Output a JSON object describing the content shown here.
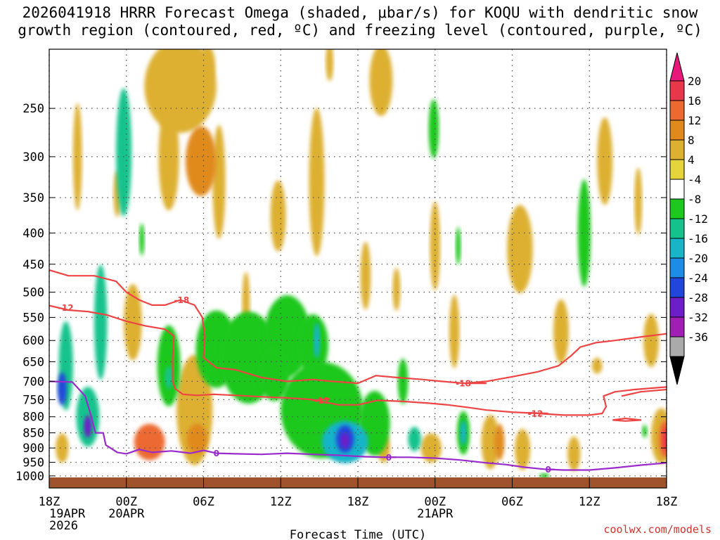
{
  "chart_data": {
    "type": "heatmap",
    "title_line1": "2026041918 HRRR Forecast Omega (shaded, μbar/s) for KOQU with dendritic snow",
    "title_line2": "growth region (contoured, red, ºC) and freezing level (contoured, purple, ºC)",
    "xlabel": "Forecast Time (UTC)",
    "ylabel": "",
    "x_range_hours": [
      0,
      48
    ],
    "y_range_hPa": [
      1030,
      200
    ],
    "y_ticks": [
      "250",
      "300",
      "350",
      "400",
      "450",
      "500",
      "550",
      "600",
      "650",
      "700",
      "750",
      "800",
      "850",
      "900",
      "950",
      "1000"
    ],
    "x_ticks": [
      {
        "hour": 0,
        "lines": [
          "18Z",
          "19APR",
          "2026"
        ]
      },
      {
        "hour": 6,
        "lines": [
          "00Z",
          "20APR"
        ]
      },
      {
        "hour": 12,
        "lines": [
          "06Z"
        ]
      },
      {
        "hour": 18,
        "lines": [
          "12Z"
        ]
      },
      {
        "hour": 24,
        "lines": [
          "18Z"
        ]
      },
      {
        "hour": 30,
        "lines": [
          "00Z",
          "21APR"
        ]
      },
      {
        "hour": 36,
        "lines": [
          "06Z"
        ]
      },
      {
        "hour": 42,
        "lines": [
          "12Z"
        ]
      },
      {
        "hour": 48,
        "lines": [
          "18Z"
        ]
      }
    ],
    "colorbar": {
      "labels": [
        "20",
        "16",
        "12",
        "8",
        "4",
        "-4",
        "-8",
        "-12",
        "-16",
        "-20",
        "-24",
        "-28",
        "-32",
        "-36"
      ],
      "bands": [
        {
          "lo": 16,
          "hi": 20,
          "color": "#e8364a"
        },
        {
          "lo": 12,
          "hi": 16,
          "color": "#ec6a30"
        },
        {
          "lo": 8,
          "hi": 12,
          "color": "#e08a1e"
        },
        {
          "lo": 4,
          "hi": 8,
          "color": "#ddb032"
        },
        {
          "lo": 0,
          "hi": 4,
          "color": "#e6d43c"
        },
        {
          "lo": -4,
          "hi": 0,
          "color": "#ffffff"
        },
        {
          "lo": -8,
          "hi": -4,
          "color": "#1ec81e"
        },
        {
          "lo": -12,
          "hi": -8,
          "color": "#14c38c"
        },
        {
          "lo": -16,
          "hi": -12,
          "color": "#18b4c8"
        },
        {
          "lo": -20,
          "hi": -16,
          "color": "#1e8ce6"
        },
        {
          "lo": -24,
          "hi": -20,
          "color": "#2046dc"
        },
        {
          "lo": -28,
          "hi": -24,
          "color": "#6e1ec8"
        },
        {
          "lo": -32,
          "hi": -28,
          "color": "#a01eb4"
        },
        {
          "lo": -36,
          "hi": -32,
          "color": "#aaaaaa"
        }
      ],
      "top_color": "#e8187a",
      "bottom_color": "#000000"
    },
    "omega_blobs": [
      {
        "t": 2.2,
        "p": 300,
        "rt": 0.35,
        "rp": 60,
        "v": 6
      },
      {
        "t": 5.3,
        "p": 345,
        "rt": 0.3,
        "rp": 30,
        "v": 4
      },
      {
        "t": 5.8,
        "p": 295,
        "rt": 0.6,
        "rp": 70,
        "v": -10
      },
      {
        "t": 7.2,
        "p": 410,
        "rt": 0.2,
        "rp": 25,
        "v": -6
      },
      {
        "t": 10.2,
        "p": 230,
        "rt": 2.8,
        "rp": 40,
        "v": 6
      },
      {
        "t": 11.8,
        "p": 305,
        "rt": 1.2,
        "rp": 40,
        "v": 9
      },
      {
        "t": 9.3,
        "p": 300,
        "rt": 0.8,
        "rp": 60,
        "v": 4
      },
      {
        "t": 13.2,
        "p": 330,
        "rt": 0.5,
        "rp": 70,
        "v": 4
      },
      {
        "t": 12.3,
        "p": 212,
        "rt": 0.6,
        "rp": 15,
        "v": 4
      },
      {
        "t": 15.3,
        "p": 520,
        "rt": 0.3,
        "rp": 60,
        "v": 4
      },
      {
        "t": 17.8,
        "p": 375,
        "rt": 0.6,
        "rp": 50,
        "v": 4
      },
      {
        "t": 20.8,
        "p": 330,
        "rt": 0.6,
        "rp": 90,
        "v": 4
      },
      {
        "t": 21.8,
        "p": 210,
        "rt": 0.3,
        "rp": 15,
        "v": 4
      },
      {
        "t": 24.6,
        "p": 470,
        "rt": 0.4,
        "rp": 60,
        "v": 4
      },
      {
        "t": 25.8,
        "p": 225,
        "rt": 0.9,
        "rp": 30,
        "v": 4
      },
      {
        "t": 27.0,
        "p": 495,
        "rt": 0.3,
        "rp": 40,
        "v": 4
      },
      {
        "t": 29.9,
        "p": 270,
        "rt": 0.4,
        "rp": 30,
        "v": -6
      },
      {
        "t": 30.0,
        "p": 420,
        "rt": 0.4,
        "rp": 70,
        "v": 4
      },
      {
        "t": 31.8,
        "p": 420,
        "rt": 0.2,
        "rp": 30,
        "v": -6
      },
      {
        "t": 36.6,
        "p": 425,
        "rt": 1.0,
        "rp": 70,
        "v": 6
      },
      {
        "t": 39.8,
        "p": 580,
        "rt": 0.6,
        "rp": 70,
        "v": 4
      },
      {
        "t": 41.6,
        "p": 400,
        "rt": 0.5,
        "rp": 80,
        "v": -8
      },
      {
        "t": 43.2,
        "p": 305,
        "rt": 0.6,
        "rp": 50,
        "v": 4
      },
      {
        "t": 45.8,
        "p": 355,
        "rt": 0.3,
        "rp": 45,
        "v": 4
      },
      {
        "t": 46.8,
        "p": 600,
        "rt": 0.6,
        "rp": 60,
        "v": 4
      },
      {
        "t": 42.6,
        "p": 660,
        "rt": 0.4,
        "rp": 20,
        "v": 4
      },
      {
        "t": 1.3,
        "p": 660,
        "rt": 0.55,
        "rp": 110,
        "v": -10
      },
      {
        "t": 1.0,
        "p": 720,
        "rt": 0.35,
        "rp": 45,
        "v": -22
      },
      {
        "t": 4.0,
        "p": 560,
        "rt": 0.5,
        "rp": 120,
        "v": -9
      },
      {
        "t": 3.0,
        "p": 800,
        "rt": 0.9,
        "rp": 90,
        "v": -12
      },
      {
        "t": 3.0,
        "p": 830,
        "rt": 0.3,
        "rp": 35,
        "v": -28
      },
      {
        "t": 1.0,
        "p": 900,
        "rt": 0.5,
        "rp": 50,
        "v": 7
      },
      {
        "t": 6.5,
        "p": 560,
        "rt": 0.7,
        "rp": 80,
        "v": 4
      },
      {
        "t": 7.8,
        "p": 880,
        "rt": 1.2,
        "rp": 60,
        "v": 12
      },
      {
        "t": 9.3,
        "p": 660,
        "rt": 0.9,
        "rp": 100,
        "v": -8
      },
      {
        "t": 9.3,
        "p": 690,
        "rt": 0.3,
        "rp": 30,
        "v": -12
      },
      {
        "t": 11.3,
        "p": 780,
        "rt": 1.4,
        "rp": 160,
        "v": 6
      },
      {
        "t": 11.5,
        "p": 870,
        "rt": 0.8,
        "rp": 50,
        "v": 10
      },
      {
        "t": 13.0,
        "p": 620,
        "rt": 1.6,
        "rp": 90,
        "v": -7
      },
      {
        "t": 15.5,
        "p": 640,
        "rt": 2.2,
        "rp": 110,
        "v": -8
      },
      {
        "t": 18.5,
        "p": 590,
        "rt": 1.8,
        "rp": 90,
        "v": -8
      },
      {
        "t": 20.5,
        "p": 610,
        "rt": 1.2,
        "rp": 70,
        "v": -8
      },
      {
        "t": 20.8,
        "p": 600,
        "rt": 0.25,
        "rp": 40,
        "v": -13
      },
      {
        "t": 17.5,
        "p": 680,
        "rt": 1.2,
        "rp": 70,
        "v": -8
      },
      {
        "t": 21.2,
        "p": 780,
        "rt": 3.2,
        "rp": 140,
        "v": -8
      },
      {
        "t": 23.0,
        "p": 880,
        "rt": 1.8,
        "rp": 70,
        "v": -16
      },
      {
        "t": 23.0,
        "p": 870,
        "rt": 0.7,
        "rp": 45,
        "v": -22
      },
      {
        "t": 23.0,
        "p": 875,
        "rt": 0.35,
        "rp": 25,
        "v": -28
      },
      {
        "t": 25.3,
        "p": 820,
        "rt": 1.2,
        "rp": 100,
        "v": -8
      },
      {
        "t": 26.0,
        "p": 900,
        "rt": 0.5,
        "rp": 50,
        "v": 4
      },
      {
        "t": 27.5,
        "p": 700,
        "rt": 0.4,
        "rp": 60,
        "v": -7
      },
      {
        "t": 28.4,
        "p": 870,
        "rt": 0.5,
        "rp": 40,
        "v": -10
      },
      {
        "t": 29.7,
        "p": 900,
        "rt": 0.8,
        "rp": 50,
        "v": 6
      },
      {
        "t": 31.5,
        "p": 580,
        "rt": 0.4,
        "rp": 80,
        "v": 4
      },
      {
        "t": 32.2,
        "p": 850,
        "rt": 0.5,
        "rp": 70,
        "v": -8
      },
      {
        "t": 32.2,
        "p": 850,
        "rt": 0.25,
        "rp": 40,
        "v": -14
      },
      {
        "t": 34.3,
        "p": 880,
        "rt": 0.7,
        "rp": 90,
        "v": 6
      },
      {
        "t": 35.0,
        "p": 880,
        "rt": 0.4,
        "rp": 60,
        "v": 10
      },
      {
        "t": 36.8,
        "p": 905,
        "rt": 0.6,
        "rp": 70,
        "v": 5
      },
      {
        "t": 38.5,
        "p": 1000,
        "rt": 0.4,
        "rp": 10,
        "v": -6
      },
      {
        "t": 40.8,
        "p": 920,
        "rt": 0.5,
        "rp": 60,
        "v": 4
      },
      {
        "t": 47.6,
        "p": 860,
        "rt": 0.8,
        "rp": 90,
        "v": 5
      },
      {
        "t": 47.9,
        "p": 870,
        "rt": 0.5,
        "rp": 60,
        "v": 12
      },
      {
        "t": 48.0,
        "p": 870,
        "rt": 0.3,
        "rp": 40,
        "v": 18
      },
      {
        "t": 46.3,
        "p": 845,
        "rt": 0.2,
        "rp": 20,
        "v": -6
      }
    ],
    "contours": [
      {
        "label": "-18",
        "color": "#ee4444",
        "points": [
          [
            0,
            460
          ],
          [
            1.5,
            470
          ],
          [
            3.5,
            470
          ],
          [
            5.2,
            480
          ],
          [
            6.0,
            500
          ],
          [
            7.0,
            515
          ],
          [
            8.0,
            525
          ],
          [
            9.0,
            525
          ],
          [
            10.2,
            515
          ],
          [
            11.3,
            525
          ],
          [
            11.9,
            550
          ],
          [
            12.1,
            590
          ],
          [
            12.0,
            640
          ],
          [
            13.0,
            665
          ],
          [
            14.5,
            670
          ],
          [
            16.5,
            690
          ],
          [
            18.5,
            700
          ],
          [
            20.5,
            695
          ],
          [
            22.0,
            700
          ],
          [
            24.0,
            705
          ],
          [
            25.4,
            685
          ],
          [
            27.0,
            690
          ],
          [
            29.0,
            695
          ],
          [
            30.5,
            700
          ],
          [
            32.3,
            705
          ],
          [
            34.0,
            700
          ],
          [
            36.0,
            688
          ],
          [
            38.0,
            675
          ],
          [
            39.6,
            660
          ],
          [
            40.6,
            635
          ],
          [
            41.3,
            615
          ],
          [
            42.5,
            605
          ],
          [
            44.0,
            600
          ],
          [
            46.0,
            592
          ],
          [
            48.0,
            585
          ]
        ],
        "label_at": [
          10.3,
          515
        ]
      },
      {
        "label": "-18",
        "color": "#ee4444",
        "points": [
          [
            44.5,
            740
          ],
          [
            46.0,
            728
          ],
          [
            48.0,
            722
          ]
        ],
        "label_at": null
      },
      {
        "label": "-18",
        "color": "#ee4444",
        "points": [
          [
            32.2,
            705
          ],
          [
            34.0,
            705
          ]
        ],
        "label_at": [
          32.2,
          705
        ]
      },
      {
        "label": "-12",
        "color": "#ee4444",
        "points": [
          [
            0,
            526
          ],
          [
            1.5,
            535
          ],
          [
            3.0,
            538
          ],
          [
            4.5,
            545
          ],
          [
            6.0,
            558
          ],
          [
            7.5,
            568
          ],
          [
            9.0,
            575
          ],
          [
            9.7,
            590
          ],
          [
            9.6,
            640
          ],
          [
            9.6,
            700
          ],
          [
            9.8,
            720
          ],
          [
            10.4,
            735
          ],
          [
            11.5,
            738
          ],
          [
            12.8,
            735
          ],
          [
            14.5,
            738
          ],
          [
            16.5,
            742
          ],
          [
            18.5,
            745
          ],
          [
            20.5,
            750
          ],
          [
            22.5,
            765
          ],
          [
            24.0,
            765
          ],
          [
            25.5,
            752
          ],
          [
            27.5,
            755
          ],
          [
            29.5,
            760
          ],
          [
            31.0,
            765
          ],
          [
            32.5,
            772
          ],
          [
            34.0,
            780
          ],
          [
            36.0,
            786
          ],
          [
            38.0,
            790
          ],
          [
            40.0,
            795
          ],
          [
            42.0,
            795
          ],
          [
            43.0,
            790
          ],
          [
            43.3,
            770
          ],
          [
            43.1,
            740
          ],
          [
            44.0,
            728
          ],
          [
            45.5,
            722
          ],
          [
            48.0,
            715
          ]
        ],
        "label_at": [
          1.3,
          530
        ]
      },
      {
        "label": "-12",
        "color": "#ee4444",
        "points": [
          [
            20.4,
            752
          ],
          [
            21.8,
            748
          ]
        ],
        "label_at": [
          21.2,
          752
        ]
      },
      {
        "label": "-12",
        "color": "#ee4444",
        "points": [
          [
            37.2,
            788
          ],
          [
            38.8,
            790
          ]
        ],
        "label_at": [
          37.8,
          790
        ]
      },
      {
        "label": "-12",
        "color": "#ee4444",
        "points": [
          [
            43.8,
            810
          ],
          [
            44.8,
            805
          ],
          [
            46.0,
            810
          ],
          [
            44.8,
            813
          ],
          [
            43.8,
            810
          ]
        ],
        "label_at": null
      },
      {
        "label": "0",
        "color": "#9a2acb",
        "points": [
          [
            0,
            700
          ],
          [
            1.8,
            702
          ],
          [
            2.8,
            740
          ],
          [
            3.2,
            790
          ],
          [
            3.6,
            850
          ],
          [
            4.2,
            850
          ],
          [
            4.4,
            890
          ],
          [
            5.3,
            915
          ],
          [
            6.0,
            920
          ],
          [
            7.0,
            905
          ],
          [
            8.0,
            915
          ],
          [
            9.5,
            910
          ],
          [
            11.0,
            918
          ],
          [
            12.0,
            908
          ],
          [
            13.0,
            918
          ],
          [
            14.5,
            920
          ],
          [
            16.5,
            922
          ],
          [
            18.5,
            918
          ],
          [
            20.5,
            922
          ],
          [
            22.5,
            925
          ],
          [
            24.5,
            930
          ],
          [
            26.0,
            932
          ],
          [
            28.0,
            932
          ],
          [
            30.0,
            935
          ],
          [
            32.0,
            942
          ],
          [
            34.0,
            952
          ],
          [
            35.5,
            958
          ],
          [
            37.0,
            968
          ],
          [
            38.5,
            975
          ],
          [
            40.0,
            978
          ],
          [
            42.0,
            978
          ],
          [
            44.0,
            970
          ],
          [
            46.0,
            960
          ],
          [
            48.0,
            952
          ]
        ],
        "label_at": [
          13.0,
          918
        ]
      },
      {
        "label": "0",
        "color": "#9a2acb",
        "points": [
          [
            26.0,
            932
          ],
          [
            27.0,
            932
          ]
        ],
        "label_at": [
          26.4,
          932
        ]
      },
      {
        "label": "0",
        "color": "#9a2acb",
        "points": [
          [
            38.6,
            976
          ],
          [
            39.3,
            976
          ]
        ],
        "label_at": [
          38.8,
          976
        ]
      }
    ],
    "credit": "coolwx.com/models"
  }
}
